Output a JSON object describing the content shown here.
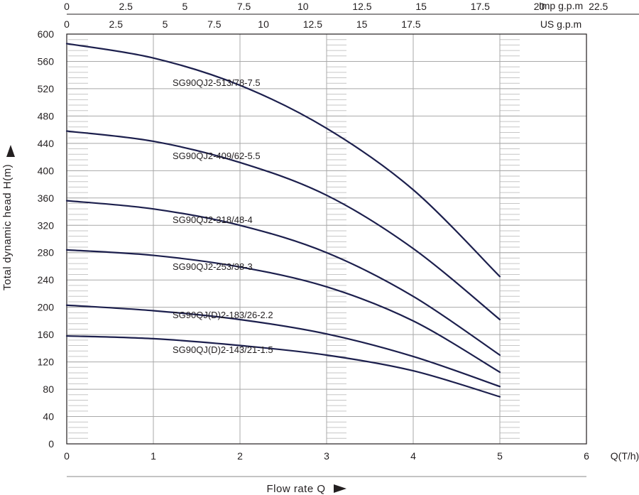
{
  "chart_data": {
    "type": "line",
    "xlabel": "Flow rate Q",
    "x_unit": "Q(T/h)",
    "ylabel": "Total dynamic head  H(m)",
    "xlim": [
      0,
      6
    ],
    "ylim": [
      0,
      600
    ],
    "x_ticks": [
      0,
      1,
      2,
      3,
      4,
      5,
      6
    ],
    "y_ticks": [
      0,
      40,
      80,
      120,
      160,
      200,
      240,
      280,
      320,
      360,
      400,
      440,
      480,
      520,
      560,
      600
    ],
    "grid": true,
    "secondary_axes": [
      {
        "name": "US g.p.m",
        "ticks": [
          0,
          2.5,
          5,
          7.5,
          10,
          12.5,
          15,
          17.5
        ],
        "scale_per_th": 4.4029
      },
      {
        "name": "Imp g.p.m",
        "ticks": [
          0,
          2.5,
          5,
          7.5,
          10,
          12.5,
          15,
          17.5,
          20,
          22.5
        ],
        "scale_per_th": 3.6662
      }
    ],
    "series": [
      {
        "name": "SG90QJ2-513/78-7.5",
        "x": [
          0,
          1,
          2,
          3,
          4,
          5
        ],
        "y": [
          586,
          565,
          525,
          462,
          372,
          245
        ]
      },
      {
        "name": "SG90QJ2-409/62-5.5",
        "x": [
          0,
          1,
          2,
          3,
          4,
          5
        ],
        "y": [
          458,
          443,
          412,
          364,
          286,
          182
        ]
      },
      {
        "name": "SG90QJ2-318/48-4",
        "x": [
          0,
          1,
          2,
          3,
          4,
          5
        ],
        "y": [
          356,
          344,
          320,
          280,
          216,
          130
        ]
      },
      {
        "name": "SG90QJ2-253/38-3",
        "x": [
          0,
          1,
          2,
          3,
          4,
          5
        ],
        "y": [
          284,
          276,
          259,
          230,
          180,
          105
        ]
      },
      {
        "name": "SG90QJ(D)2-183/26-2.2",
        "x": [
          0,
          1,
          2,
          3,
          4,
          5
        ],
        "y": [
          203,
          195,
          182,
          161,
          128,
          84
        ]
      },
      {
        "name": "SG90QJ(D)2-143/21-1.5",
        "x": [
          0,
          1,
          2,
          3,
          4,
          5
        ],
        "y": [
          158,
          154,
          144,
          130,
          107,
          69
        ]
      }
    ]
  },
  "colors": {
    "curve": "#1c1f4d",
    "grid": "#a9a9a9",
    "frame": "#231f20"
  }
}
